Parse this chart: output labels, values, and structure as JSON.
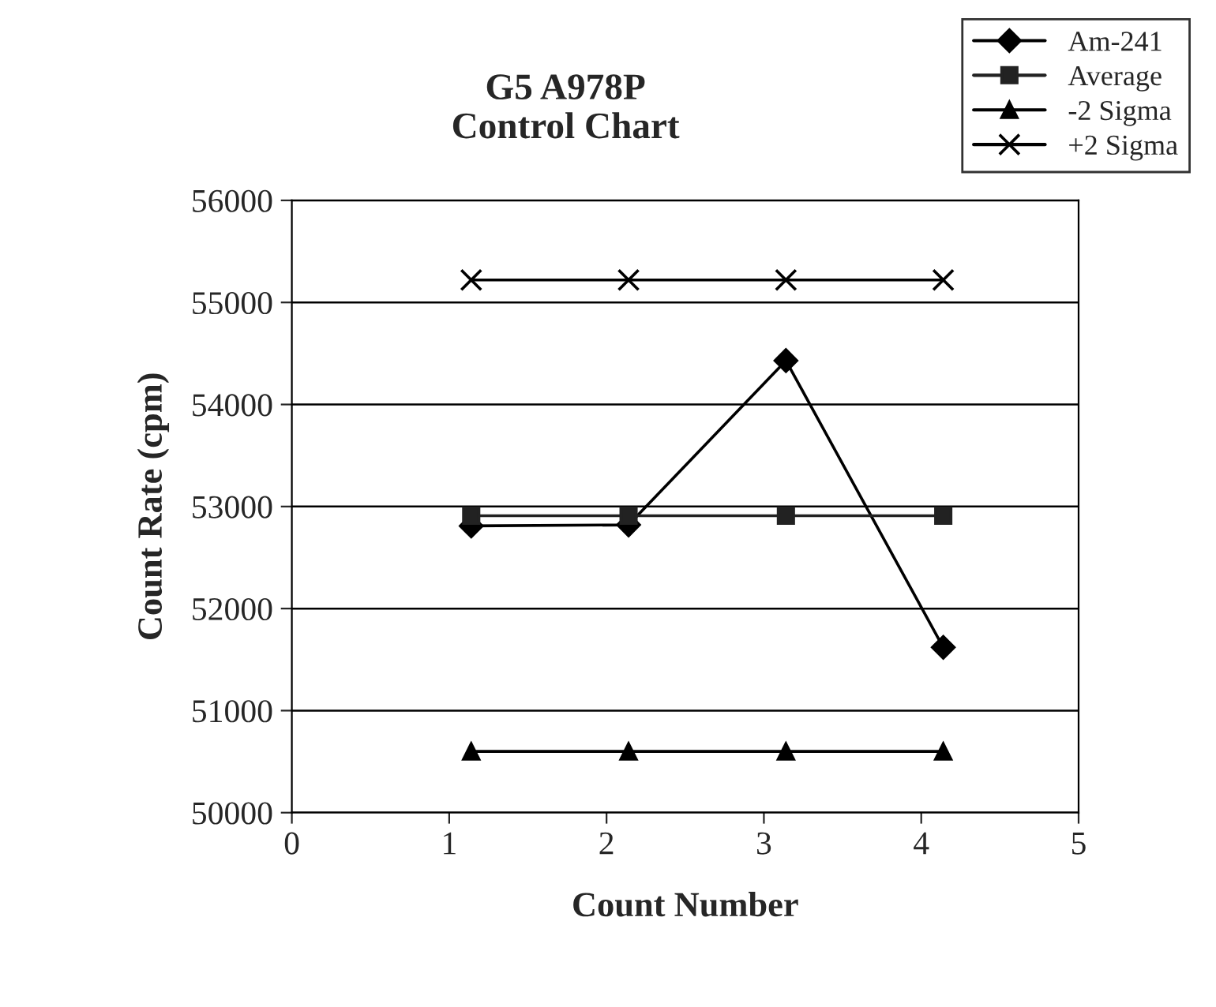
{
  "chart_data": {
    "type": "line",
    "title": "G5 A978P\nControl Chart",
    "xlabel": "Count Number",
    "ylabel": "Count Rate (cpm)",
    "x": [
      1.14,
      2.14,
      3.14,
      4.14
    ],
    "series": [
      {
        "name": "Am-241",
        "color": "#000000",
        "marker": "diamond",
        "values": [
          52810,
          52820,
          54430,
          51620
        ]
      },
      {
        "name": "Average",
        "color": "#222222",
        "marker": "square",
        "values": [
          52910,
          52910,
          52910,
          52910
        ]
      },
      {
        "name": "-2 Sigma",
        "color": "#000000",
        "marker": "triangle",
        "values": [
          50600,
          50600,
          50600,
          50600
        ]
      },
      {
        "name": "+2 Sigma",
        "color": "#000000",
        "marker": "cross",
        "values": [
          55220,
          55220,
          55220,
          55220
        ]
      }
    ],
    "xlim": [
      0,
      5
    ],
    "xticks": [
      0,
      1,
      2,
      3,
      4,
      5
    ],
    "ylim": [
      50000,
      56000
    ],
    "yticks": [
      50000,
      51000,
      52000,
      53000,
      54000,
      55000,
      56000
    ],
    "grid": "y",
    "legend": "top right",
    "line_style": "solid"
  }
}
